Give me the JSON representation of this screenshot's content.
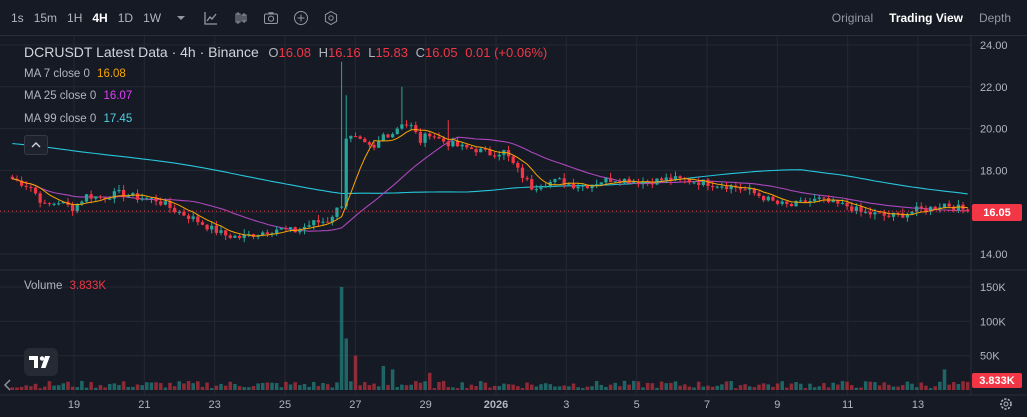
{
  "toolbar": {
    "timeframes": [
      "1s",
      "15m",
      "1H",
      "4H",
      "1D",
      "1W"
    ],
    "active_timeframe": "4H",
    "icons": [
      "chevron-down-icon",
      "indicators-icon",
      "chart-type-icon",
      "camera-icon",
      "plus-icon",
      "settings-icon"
    ],
    "views": [
      "Original",
      "Trading View",
      "Depth"
    ],
    "active_view": "Trading View"
  },
  "legend": {
    "title": "DCRUSDT Latest Data · 4h · Binance",
    "o_label": "O",
    "o_value": "16.08",
    "h_label": "H",
    "h_value": "16.16",
    "l_label": "L",
    "l_value": "15.83",
    "c_label": "C",
    "c_value": "16.05",
    "change": "0.01 (+0.06%)",
    "ma7_label": "MA 7 close 0",
    "ma7_value": "16.08",
    "ma25_label": "MA 25 close 0",
    "ma25_value": "16.07",
    "ma99_label": "MA 99 close 0",
    "ma99_value": "17.45",
    "volume_label": "Volume",
    "volume_value": "3.833K"
  },
  "price_tag": "16.05",
  "volume_tag": "3.833K",
  "colors": {
    "up": "#26a69a",
    "down": "#f23645",
    "ma7": "#f7a600",
    "ma25": "#ab47bc",
    "ma99": "#26c6da",
    "background": "#161a25",
    "grid": "#242833"
  },
  "chart_data": {
    "type": "candlestick",
    "price_axis_ticks": [
      "24.00",
      "22.00",
      "20.00",
      "18.00",
      "16.00",
      "14.00"
    ],
    "volume_axis_ticks": [
      "150K",
      "100K",
      "50K"
    ],
    "time_axis_ticks": [
      "19",
      "21",
      "23",
      "25",
      "27",
      "29",
      "2026",
      "3",
      "5",
      "7",
      "9",
      "11",
      "13"
    ],
    "price_range": [
      13.2,
      24.2
    ],
    "volume_range": [
      0,
      175000
    ],
    "close_path": [
      [
        0,
        17.6
      ],
      [
        4,
        17.2
      ],
      [
        7,
        16.3
      ],
      [
        10,
        16.5
      ],
      [
        13,
        16.2
      ],
      [
        16,
        16.8
      ],
      [
        19,
        16.7
      ],
      [
        23,
        16.9
      ],
      [
        27,
        16.7
      ],
      [
        31,
        16.6
      ],
      [
        35,
        16.1
      ],
      [
        39,
        15.7
      ],
      [
        43,
        15.2
      ],
      [
        46,
        14.9
      ],
      [
        49,
        14.8
      ],
      [
        53,
        15.0
      ],
      [
        57,
        15.2
      ],
      [
        61,
        15.1
      ],
      [
        65,
        15.5
      ],
      [
        68,
        15.6
      ],
      [
        71,
        16.4
      ],
      [
        72,
        19.6
      ],
      [
        74,
        19.5
      ],
      [
        76,
        19.2
      ],
      [
        78,
        19.0
      ],
      [
        80,
        19.7
      ],
      [
        82,
        19.8
      ],
      [
        84,
        20.3
      ],
      [
        86,
        20.1
      ],
      [
        88,
        19.4
      ],
      [
        90,
        19.8
      ],
      [
        92,
        19.5
      ],
      [
        94,
        19.3
      ],
      [
        97,
        19.1
      ],
      [
        100,
        19.0
      ],
      [
        103,
        18.8
      ],
      [
        106,
        18.9
      ],
      [
        109,
        18.0
      ],
      [
        112,
        17.2
      ],
      [
        115,
        17.4
      ],
      [
        118,
        17.5
      ],
      [
        121,
        17.3
      ],
      [
        124,
        17.3
      ],
      [
        127,
        17.5
      ],
      [
        130,
        17.6
      ],
      [
        134,
        17.5
      ],
      [
        138,
        17.5
      ],
      [
        142,
        17.6
      ],
      [
        146,
        17.5
      ],
      [
        150,
        17.4
      ],
      [
        153,
        17.3
      ],
      [
        156,
        17.2
      ],
      [
        159,
        17.0
      ],
      [
        162,
        16.7
      ],
      [
        165,
        16.4
      ],
      [
        168,
        16.3
      ],
      [
        171,
        16.5
      ],
      [
        174,
        16.6
      ],
      [
        177,
        16.4
      ],
      [
        180,
        16.3
      ],
      [
        183,
        16.0
      ],
      [
        186,
        15.9
      ],
      [
        189,
        15.8
      ],
      [
        192,
        15.9
      ],
      [
        195,
        16.1
      ],
      [
        198,
        16.2
      ],
      [
        201,
        16.4
      ],
      [
        204,
        16.2
      ],
      [
        206,
        16.05
      ]
    ],
    "volume_spikes": [
      [
        71,
        150000
      ],
      [
        72,
        75000
      ],
      [
        74,
        50000
      ],
      [
        80,
        35000
      ],
      [
        82,
        30000
      ],
      [
        90,
        25000
      ],
      [
        201,
        30000
      ]
    ],
    "last_price": 16.05,
    "last_volume": "3.833K"
  }
}
